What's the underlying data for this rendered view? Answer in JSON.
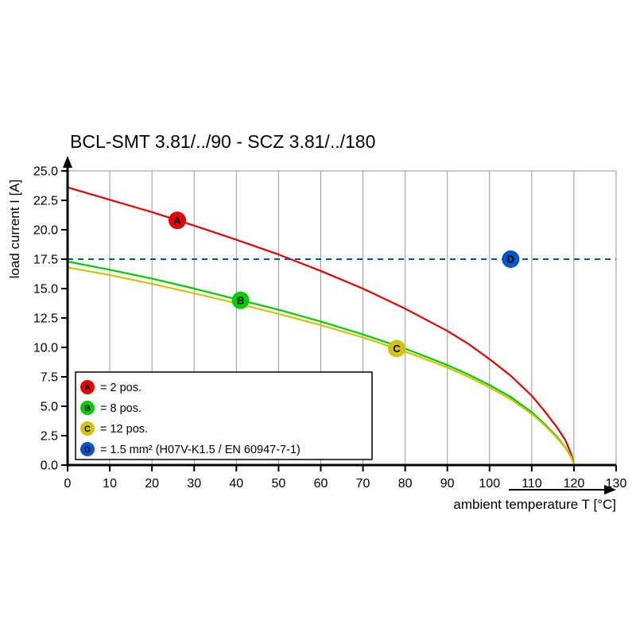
{
  "chart_data": {
    "type": "line",
    "title": "BCL-SMT 3.81/../90 - SCZ 3.81/../180",
    "xlabel": "ambient temperature T [°C]",
    "ylabel": "load current I [A]",
    "xlim": [
      0,
      130
    ],
    "ylim": [
      0,
      25
    ],
    "x_ticks": [
      0,
      10,
      20,
      30,
      40,
      50,
      60,
      70,
      80,
      90,
      100,
      110,
      120,
      130
    ],
    "y_ticks": [
      0,
      2.5,
      5,
      7.5,
      10,
      12.5,
      15,
      17.5,
      20,
      22.5,
      25
    ],
    "grid": "vertical",
    "legend_position": "lower-left",
    "series": [
      {
        "id": "A",
        "name": "2 pos.",
        "legend_label": "= 2 pos.",
        "color": "#e60000",
        "line": "solid",
        "marker": [
          26,
          20.8
        ],
        "points": [
          [
            0,
            23.6
          ],
          [
            10,
            22.55
          ],
          [
            20,
            21.5
          ],
          [
            30,
            20.35
          ],
          [
            40,
            19.15
          ],
          [
            50,
            17.9
          ],
          [
            60,
            16.5
          ],
          [
            70,
            15.0
          ],
          [
            80,
            13.3
          ],
          [
            90,
            11.4
          ],
          [
            95,
            10.3
          ],
          [
            100,
            9.0
          ],
          [
            105,
            7.6
          ],
          [
            110,
            5.9
          ],
          [
            113,
            4.6
          ],
          [
            116,
            3.2
          ],
          [
            118,
            2.1
          ],
          [
            119.5,
            0.8
          ],
          [
            120,
            0
          ]
        ]
      },
      {
        "id": "B",
        "name": "8 pos.",
        "legend_label": "= 8 pos.",
        "color": "#00cc00",
        "line": "solid",
        "marker": [
          41,
          14.0
        ],
        "points": [
          [
            0,
            17.3
          ],
          [
            10,
            16.6
          ],
          [
            20,
            15.85
          ],
          [
            30,
            15.0
          ],
          [
            40,
            14.1
          ],
          [
            50,
            13.2
          ],
          [
            60,
            12.2
          ],
          [
            70,
            11.1
          ],
          [
            80,
            9.9
          ],
          [
            90,
            8.5
          ],
          [
            95,
            7.7
          ],
          [
            100,
            6.8
          ],
          [
            105,
            5.8
          ],
          [
            110,
            4.5
          ],
          [
            113,
            3.5
          ],
          [
            116,
            2.4
          ],
          [
            118,
            1.5
          ],
          [
            119.5,
            0.6
          ],
          [
            120,
            0
          ]
        ]
      },
      {
        "id": "C",
        "name": "12 pos.",
        "legend_label": "= 12 pos.",
        "color": "#d1c400",
        "line": "solid",
        "marker": [
          78,
          9.9
        ],
        "points": [
          [
            0,
            16.8
          ],
          [
            10,
            16.15
          ],
          [
            20,
            15.4
          ],
          [
            30,
            14.6
          ],
          [
            40,
            13.75
          ],
          [
            50,
            12.85
          ],
          [
            60,
            11.9
          ],
          [
            70,
            10.85
          ],
          [
            80,
            9.65
          ],
          [
            90,
            8.3
          ],
          [
            95,
            7.5
          ],
          [
            100,
            6.6
          ],
          [
            105,
            5.6
          ],
          [
            110,
            4.35
          ],
          [
            113,
            3.4
          ],
          [
            116,
            2.3
          ],
          [
            118,
            1.45
          ],
          [
            119.5,
            0.55
          ],
          [
            120,
            0
          ]
        ]
      },
      {
        "id": "D",
        "name": "1.5 mm² (H07V-K1.5 / EN 60947-7-1)",
        "legend_label": "= 1.5 mm² (H07V-K1.5 / EN 60947-7-1)",
        "color": "#0055cc",
        "line": "dashed",
        "const_y": 17.5,
        "marker": [
          105,
          17.5
        ]
      }
    ]
  }
}
